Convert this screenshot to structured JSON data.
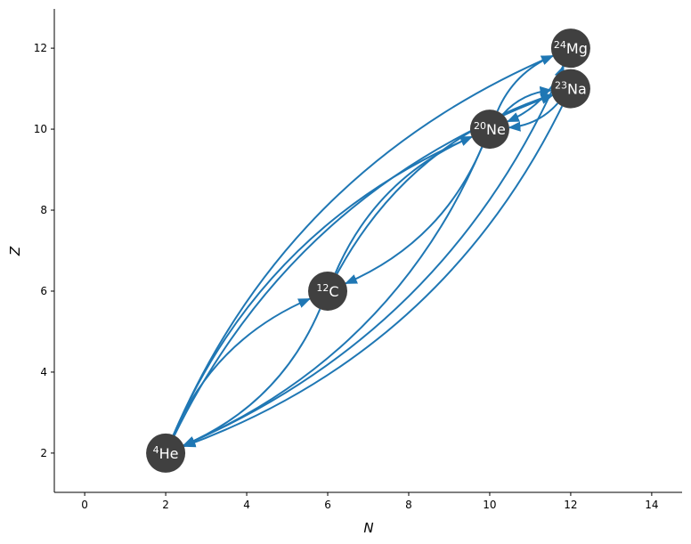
{
  "chart_data": {
    "type": "network",
    "xlabel": "N",
    "ylabel": "Z",
    "xlim": [
      -0.75,
      14.75
    ],
    "xticks": [
      0,
      2,
      4,
      6,
      8,
      10,
      12,
      14
    ],
    "ylim": [
      1.03,
      12.97
    ],
    "yticks": [
      2,
      4,
      6,
      8,
      10,
      12
    ],
    "node_color": "#404040",
    "link_color": "#1f77b4",
    "nodes": [
      {
        "label": "He",
        "mass": "4",
        "x": 2,
        "y": 2
      },
      {
        "label": "C",
        "mass": "12",
        "x": 6,
        "y": 6
      },
      {
        "label": "Ne",
        "mass": "20",
        "x": 10,
        "y": 10
      },
      {
        "label": "Na",
        "mass": "23",
        "x": 12,
        "y": 11
      },
      {
        "label": "Mg",
        "mass": "24",
        "x": 12,
        "y": 12
      }
    ],
    "links": [
      {
        "source": 0,
        "target": 1
      },
      {
        "source": 1,
        "target": 0
      },
      {
        "source": 1,
        "target": 2
      },
      {
        "source": 2,
        "target": 1
      },
      {
        "source": 0,
        "target": 2
      },
      {
        "source": 2,
        "target": 0
      },
      {
        "source": 0,
        "target": 3
      },
      {
        "source": 0,
        "target": 4
      },
      {
        "source": 4,
        "target": 0
      },
      {
        "source": 3,
        "target": 0
      },
      {
        "source": 1,
        "target": 3
      },
      {
        "source": 2,
        "target": 3
      },
      {
        "source": 3,
        "target": 2
      },
      {
        "source": 2,
        "target": 4
      },
      {
        "source": 4,
        "target": 2
      },
      {
        "source": 3,
        "target": 4
      }
    ]
  }
}
